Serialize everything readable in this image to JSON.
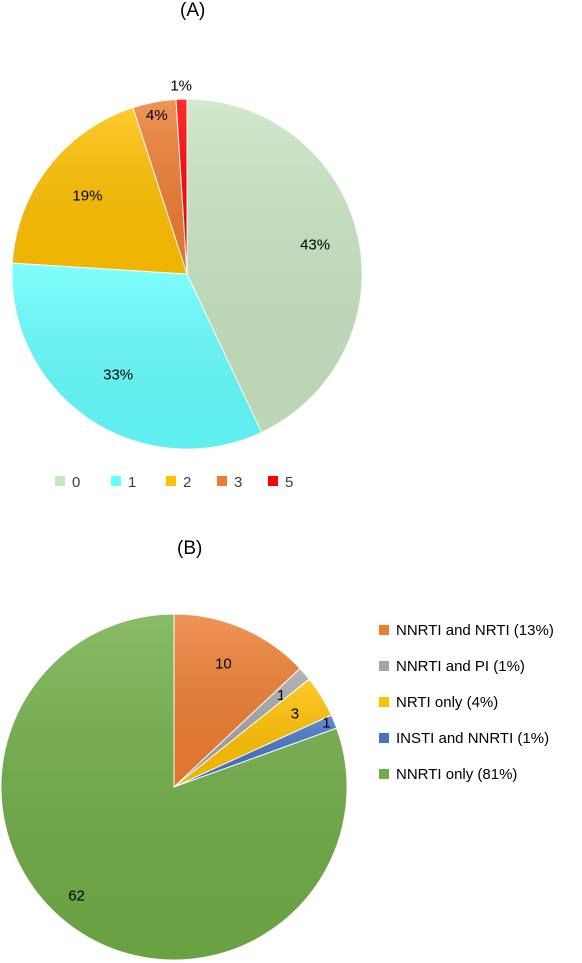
{
  "panels": {
    "a": "(A)",
    "b": "(B)"
  },
  "chart_data": [
    {
      "type": "pie",
      "title": "(A)",
      "legend_position": "bottom",
      "slices": [
        {
          "category": "0",
          "value": 43,
          "label": "43%",
          "color": "#c8e5c1"
        },
        {
          "category": "1",
          "value": 33,
          "label": "33%",
          "color": "#66ffff"
        },
        {
          "category": "2",
          "value": 19,
          "label": "19%",
          "color": "#ffc000"
        },
        {
          "category": "3",
          "value": 4,
          "label": "4%",
          "color": "#ed7d31"
        },
        {
          "category": "5",
          "value": 1,
          "label": "1%",
          "color": "#ff0000"
        }
      ]
    },
    {
      "type": "pie",
      "title": "(B)",
      "legend_position": "right",
      "slices": [
        {
          "category": "NNRTI and NRTI (13%)",
          "value": 10,
          "label": "10",
          "color": "#ed7d31"
        },
        {
          "category": "NNRTI and PI (1%)",
          "value": 1,
          "label": "1",
          "color": "#a5a5a5"
        },
        {
          "category": "NRTI only (4%)",
          "value": 3,
          "label": "3",
          "color": "#ffc000"
        },
        {
          "category": "INSTI and NNRTI (1%)",
          "value": 1,
          "label": "1",
          "color": "#4472c4"
        },
        {
          "category": "NNRTI only (81%)",
          "value": 62,
          "label": "62",
          "color": "#70ad47"
        }
      ]
    }
  ]
}
